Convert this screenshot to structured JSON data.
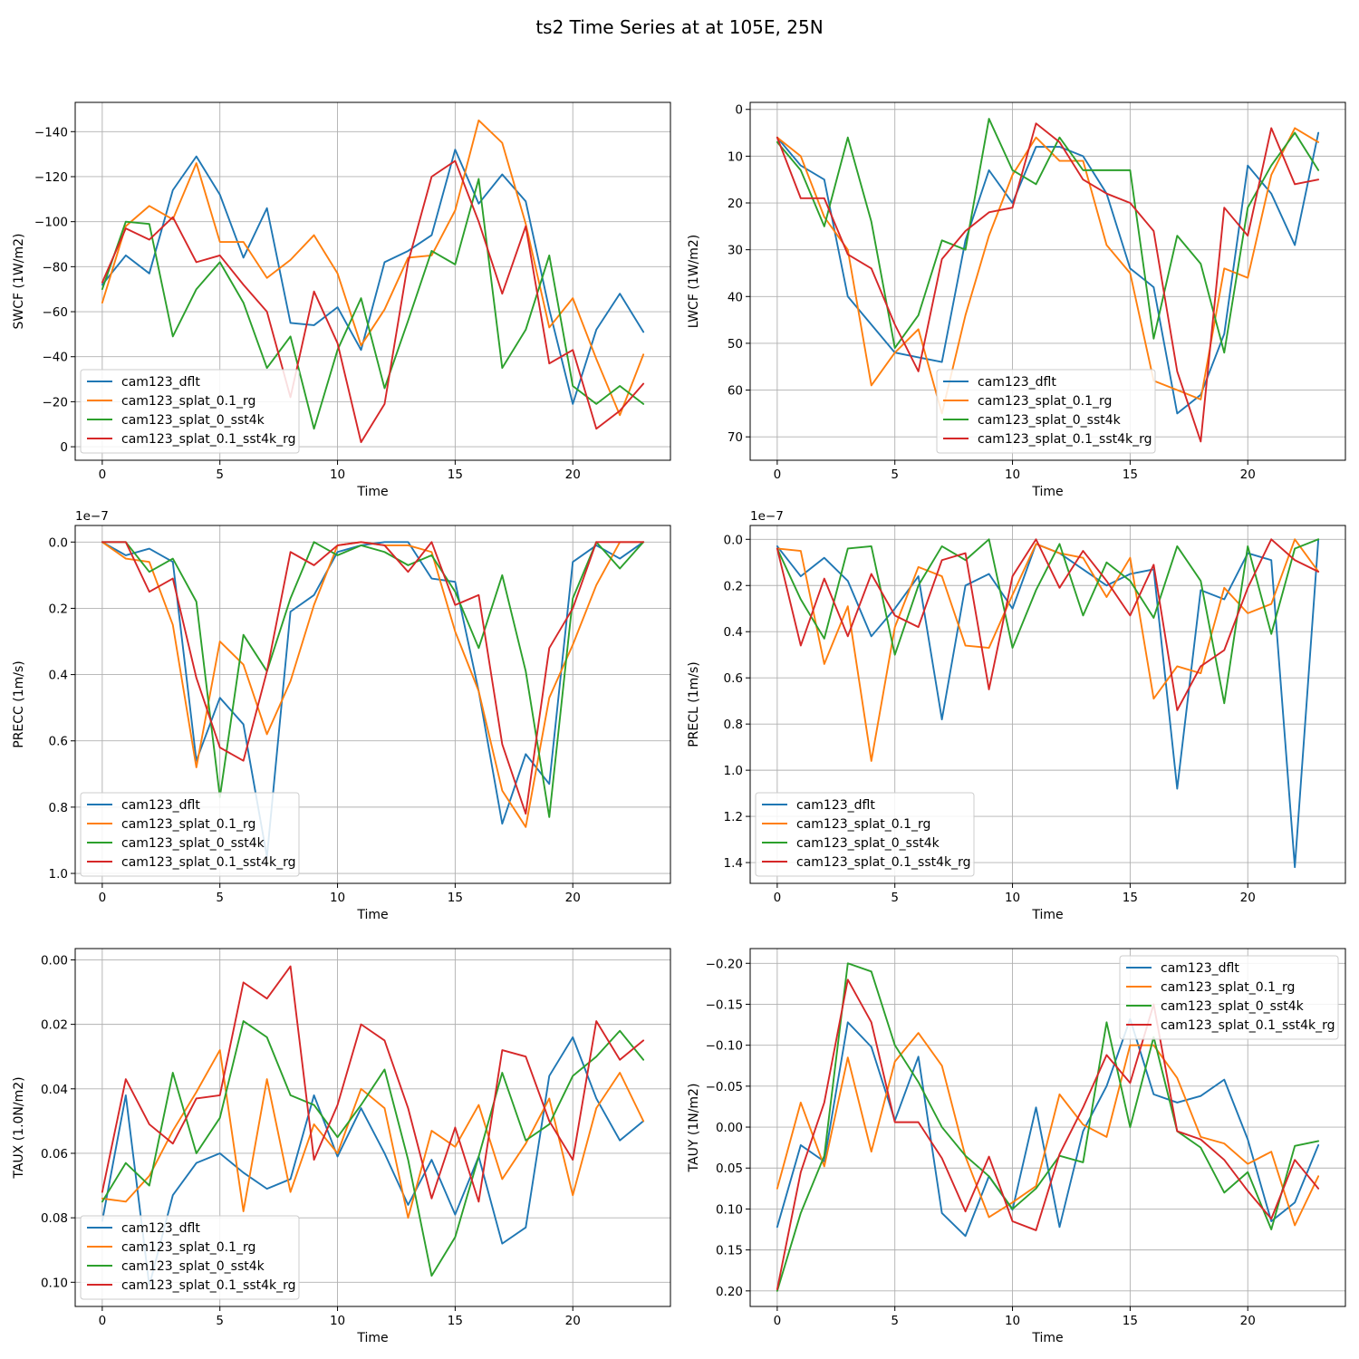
{
  "figure": {
    "title": "ts2 Time Series at at 105E, 25N"
  },
  "chart_data": [
    {
      "type": "line",
      "xlabel": "Time",
      "ylabel": "SWCF (1W/m2)",
      "x": [
        0,
        1,
        2,
        3,
        4,
        5,
        6,
        7,
        8,
        9,
        10,
        11,
        12,
        13,
        14,
        15,
        16,
        17,
        18,
        19,
        20,
        21,
        22,
        23
      ],
      "xlim": [
        -1.15,
        24.15
      ],
      "ylim": [
        -153,
        6
      ],
      "y_inverted": true,
      "xticks": [
        0,
        5,
        10,
        15,
        20
      ],
      "yticks": [
        -140,
        -120,
        -100,
        -80,
        -60,
        -40,
        -20,
        0
      ],
      "ytick_labels": [
        "−140",
        "−120",
        "−100",
        "−80",
        "−60",
        "−40",
        "−20",
        "0"
      ],
      "offset_text": "",
      "grid": true,
      "legend_position": "lower-left",
      "series": [
        {
          "name": "cam123_dflt",
          "color": "#1f77b4",
          "values": [
            -72,
            -85,
            -77,
            -114,
            -129,
            -112,
            -84,
            -106,
            -55,
            -54,
            -62,
            -43,
            -82,
            -87,
            -94,
            -132,
            -108,
            -121,
            -109,
            -61,
            -19,
            -52,
            -68,
            -51
          ]
        },
        {
          "name": "cam123_splat_0.1_rg",
          "color": "#ff7f0e",
          "values": [
            -64,
            -98,
            -107,
            -101,
            -126,
            -91,
            -91,
            -75,
            -83,
            -94,
            -77,
            -45,
            -61,
            -84,
            -85,
            -105,
            -145,
            -135,
            -99,
            -53,
            -66,
            -39,
            -14,
            -41
          ]
        },
        {
          "name": "cam123_splat_0_sst4k",
          "color": "#2ca02c",
          "values": [
            -70,
            -100,
            -99,
            -49,
            -70,
            -82,
            -64,
            -35,
            -49,
            -8,
            -43,
            -66,
            -26,
            -56,
            -87,
            -81,
            -119,
            -35,
            -52,
            -85,
            -27,
            -19,
            -27,
            -19
          ]
        },
        {
          "name": "cam123_splat_0.1_sst4k_rg",
          "color": "#d62728",
          "values": [
            -73,
            -97,
            -92,
            -102,
            -82,
            -85,
            -72,
            -60,
            -22,
            -69,
            -46,
            -2,
            -19,
            -82,
            -120,
            -127,
            -100,
            -68,
            -98,
            -37,
            -43,
            -8,
            -16,
            -28
          ]
        }
      ]
    },
    {
      "type": "line",
      "xlabel": "Time",
      "ylabel": "LWCF (1W/m2)",
      "x": [
        0,
        1,
        2,
        3,
        4,
        5,
        6,
        7,
        8,
        9,
        10,
        11,
        12,
        13,
        14,
        15,
        16,
        17,
        18,
        19,
        20,
        21,
        22,
        23
      ],
      "xlim": [
        -1.15,
        24.15
      ],
      "ylim": [
        -1.5,
        75
      ],
      "y_inverted": true,
      "xticks": [
        0,
        5,
        10,
        15,
        20
      ],
      "yticks": [
        0,
        10,
        20,
        30,
        40,
        50,
        60,
        70
      ],
      "ytick_labels": [
        "0",
        "10",
        "20",
        "30",
        "40",
        "50",
        "60",
        "70"
      ],
      "offset_text": "",
      "grid": true,
      "legend_position": "lower-center",
      "series": [
        {
          "name": "cam123_dflt",
          "color": "#1f77b4",
          "values": [
            6,
            12,
            15,
            40,
            46,
            52,
            53,
            54,
            28,
            13,
            20,
            8,
            8,
            10,
            18,
            34,
            38,
            65,
            61,
            48,
            12,
            18,
            29,
            5
          ]
        },
        {
          "name": "cam123_splat_0.1_rg",
          "color": "#ff7f0e",
          "values": [
            6,
            10,
            23,
            30,
            59,
            52,
            47,
            65,
            44,
            27,
            14,
            6,
            11,
            11,
            29,
            35,
            58,
            60,
            62,
            34,
            36,
            14,
            4,
            7
          ]
        },
        {
          "name": "cam123_splat_0_sst4k",
          "color": "#2ca02c",
          "values": [
            7,
            13,
            25,
            6,
            24,
            51,
            44,
            28,
            30,
            2,
            13,
            16,
            6,
            13,
            13,
            13,
            49,
            27,
            33,
            52,
            21,
            12,
            5,
            13
          ]
        },
        {
          "name": "cam123_splat_0.1_sst4k_rg",
          "color": "#d62728",
          "values": [
            6,
            19,
            19,
            31,
            34,
            46,
            56,
            32,
            26,
            22,
            21,
            3,
            7,
            15,
            18,
            20,
            26,
            56,
            71,
            21,
            27,
            4,
            16,
            15
          ]
        }
      ]
    },
    {
      "type": "line",
      "xlabel": "Time",
      "ylabel": "PRECC (1m/s)",
      "x": [
        0,
        1,
        2,
        3,
        4,
        5,
        6,
        7,
        8,
        9,
        10,
        11,
        12,
        13,
        14,
        15,
        16,
        17,
        18,
        19,
        20,
        21,
        22,
        23
      ],
      "xlim": [
        -1.15,
        24.15
      ],
      "ylim": [
        -0.05,
        1.03
      ],
      "y_inverted": true,
      "xticks": [
        0,
        5,
        10,
        15,
        20
      ],
      "yticks": [
        0.0,
        0.2,
        0.4,
        0.6,
        0.8,
        1.0
      ],
      "ytick_labels": [
        "0.0",
        "0.2",
        "0.4",
        "0.6",
        "0.8",
        "1.0"
      ],
      "offset_text": "1e−7",
      "grid": true,
      "legend_position": "lower-left",
      "series": [
        {
          "name": "cam123_dflt",
          "color": "#1f77b4",
          "values": [
            0.0,
            0.04,
            0.02,
            0.06,
            0.66,
            0.47,
            0.55,
            0.95,
            0.21,
            0.16,
            0.03,
            0.01,
            0.0,
            0.0,
            0.11,
            0.12,
            0.45,
            0.85,
            0.64,
            0.73,
            0.06,
            0.01,
            0.05,
            0.0
          ]
        },
        {
          "name": "cam123_splat_0.1_rg",
          "color": "#ff7f0e",
          "values": [
            0.0,
            0.05,
            0.06,
            0.25,
            0.68,
            0.3,
            0.37,
            0.58,
            0.42,
            0.19,
            0.01,
            0.0,
            0.01,
            0.01,
            0.03,
            0.27,
            0.45,
            0.75,
            0.86,
            0.47,
            0.31,
            0.13,
            0.0,
            0.0
          ]
        },
        {
          "name": "cam123_splat_0_sst4k",
          "color": "#2ca02c",
          "values": [
            0.0,
            0.0,
            0.09,
            0.05,
            0.18,
            0.77,
            0.28,
            0.39,
            0.17,
            0.0,
            0.04,
            0.01,
            0.03,
            0.07,
            0.04,
            0.15,
            0.32,
            0.1,
            0.39,
            0.83,
            0.17,
            0.0,
            0.08,
            0.0
          ]
        },
        {
          "name": "cam123_splat_0.1_sst4k_rg",
          "color": "#d62728",
          "values": [
            0.0,
            0.0,
            0.15,
            0.11,
            0.41,
            0.62,
            0.66,
            0.39,
            0.03,
            0.07,
            0.01,
            0.0,
            0.01,
            0.09,
            0.0,
            0.19,
            0.16,
            0.61,
            0.82,
            0.32,
            0.2,
            0.0,
            0.0,
            0.0
          ]
        }
      ]
    },
    {
      "type": "line",
      "xlabel": "Time",
      "ylabel": "PRECL (1m/s)",
      "x": [
        0,
        1,
        2,
        3,
        4,
        5,
        6,
        7,
        8,
        9,
        10,
        11,
        12,
        13,
        14,
        15,
        16,
        17,
        18,
        19,
        20,
        21,
        22,
        23
      ],
      "xlim": [
        -1.15,
        24.15
      ],
      "ylim": [
        -0.06,
        1.49
      ],
      "y_inverted": true,
      "xticks": [
        0,
        5,
        10,
        15,
        20
      ],
      "yticks": [
        0.0,
        0.2,
        0.4,
        0.6,
        0.8,
        1.0,
        1.2,
        1.4
      ],
      "ytick_labels": [
        "0.0",
        "0.2",
        "0.4",
        "0.6",
        "0.8",
        "1.0",
        "1.2",
        "1.4"
      ],
      "offset_text": "1e−7",
      "grid": true,
      "legend_position": "lower-left",
      "series": [
        {
          "name": "cam123_dflt",
          "color": "#1f77b4",
          "values": [
            0.03,
            0.16,
            0.08,
            0.18,
            0.42,
            0.3,
            0.16,
            0.78,
            0.2,
            0.15,
            0.3,
            0.02,
            0.06,
            0.13,
            0.2,
            0.15,
            0.13,
            1.08,
            0.22,
            0.26,
            0.06,
            0.09,
            1.42,
            0.0
          ]
        },
        {
          "name": "cam123_splat_0.1_rg",
          "color": "#ff7f0e",
          "values": [
            0.04,
            0.05,
            0.54,
            0.29,
            0.96,
            0.38,
            0.12,
            0.16,
            0.46,
            0.47,
            0.24,
            0.02,
            0.06,
            0.08,
            0.25,
            0.08,
            0.69,
            0.55,
            0.58,
            0.21,
            0.32,
            0.28,
            0.0,
            0.14
          ]
        },
        {
          "name": "cam123_splat_0_sst4k",
          "color": "#2ca02c",
          "values": [
            0.04,
            0.26,
            0.43,
            0.04,
            0.03,
            0.5,
            0.2,
            0.03,
            0.09,
            0.0,
            0.47,
            0.22,
            0.02,
            0.33,
            0.1,
            0.18,
            0.34,
            0.03,
            0.18,
            0.71,
            0.03,
            0.41,
            0.04,
            0.0
          ]
        },
        {
          "name": "cam123_splat_0.1_sst4k_rg",
          "color": "#d62728",
          "values": [
            0.04,
            0.46,
            0.17,
            0.42,
            0.15,
            0.33,
            0.38,
            0.09,
            0.06,
            0.65,
            0.16,
            0.0,
            0.21,
            0.05,
            0.18,
            0.33,
            0.11,
            0.74,
            0.55,
            0.48,
            0.21,
            0.0,
            0.09,
            0.14
          ]
        }
      ]
    },
    {
      "type": "line",
      "xlabel": "Time",
      "ylabel": "TAUX (1.0N/m2)",
      "x": [
        0,
        1,
        2,
        3,
        4,
        5,
        6,
        7,
        8,
        9,
        10,
        11,
        12,
        13,
        14,
        15,
        16,
        17,
        18,
        19,
        20,
        21,
        22,
        23
      ],
      "xlim": [
        -1.15,
        24.15
      ],
      "ylim": [
        -0.0035,
        0.1075
      ],
      "y_inverted": true,
      "xticks": [
        0,
        5,
        10,
        15,
        20
      ],
      "yticks": [
        0.0,
        0.02,
        0.04,
        0.06,
        0.08,
        0.1
      ],
      "ytick_labels": [
        "0.00",
        "0.02",
        "0.04",
        "0.06",
        "0.08",
        "0.10"
      ],
      "offset_text": "",
      "grid": true,
      "legend_position": "lower-left",
      "series": [
        {
          "name": "cam123_dflt",
          "color": "#1f77b4",
          "values": [
            0.081,
            0.042,
            0.101,
            0.073,
            0.063,
            0.06,
            0.066,
            0.071,
            0.068,
            0.042,
            0.061,
            0.046,
            0.06,
            0.076,
            0.062,
            0.079,
            0.061,
            0.088,
            0.083,
            0.036,
            0.024,
            0.043,
            0.056,
            0.05
          ]
        },
        {
          "name": "cam123_splat_0.1_rg",
          "color": "#ff7f0e",
          "values": [
            0.074,
            0.075,
            0.067,
            0.053,
            0.041,
            0.028,
            0.078,
            0.037,
            0.072,
            0.051,
            0.06,
            0.04,
            0.046,
            0.08,
            0.053,
            0.058,
            0.045,
            0.068,
            0.057,
            0.043,
            0.073,
            0.046,
            0.035,
            0.05
          ]
        },
        {
          "name": "cam123_splat_0_sst4k",
          "color": "#2ca02c",
          "values": [
            0.075,
            0.063,
            0.07,
            0.035,
            0.06,
            0.049,
            0.019,
            0.024,
            0.042,
            0.045,
            0.055,
            0.045,
            0.034,
            0.062,
            0.098,
            0.086,
            0.061,
            0.035,
            0.056,
            0.051,
            0.036,
            0.03,
            0.022,
            0.031
          ]
        },
        {
          "name": "cam123_splat_0.1_sst4k_rg",
          "color": "#d62728",
          "values": [
            0.072,
            0.037,
            0.051,
            0.057,
            0.043,
            0.042,
            0.007,
            0.012,
            0.002,
            0.062,
            0.045,
            0.02,
            0.025,
            0.046,
            0.074,
            0.052,
            0.075,
            0.028,
            0.03,
            0.05,
            0.062,
            0.019,
            0.031,
            0.025
          ]
        }
      ]
    },
    {
      "type": "line",
      "xlabel": "Time",
      "ylabel": "TAUY (1N/m2)",
      "x": [
        0,
        1,
        2,
        3,
        4,
        5,
        6,
        7,
        8,
        9,
        10,
        11,
        12,
        13,
        14,
        15,
        16,
        17,
        18,
        19,
        20,
        21,
        22,
        23
      ],
      "xlim": [
        -1.15,
        24.15
      ],
      "ylim": [
        -0.218,
        0.219
      ],
      "y_inverted": true,
      "xticks": [
        0,
        5,
        10,
        15,
        20
      ],
      "yticks": [
        -0.2,
        -0.15,
        -0.1,
        -0.05,
        0.0,
        0.05,
        0.1,
        0.15,
        0.2
      ],
      "ytick_labels": [
        "−0.20",
        "−0.15",
        "−0.10",
        "−0.05",
        "0.00",
        "0.05",
        "0.10",
        "0.15",
        "0.20"
      ],
      "offset_text": "",
      "grid": true,
      "legend_position": "upper-right",
      "series": [
        {
          "name": "cam123_dflt",
          "color": "#1f77b4",
          "values": [
            0.122,
            0.022,
            0.042,
            -0.128,
            -0.098,
            -0.008,
            -0.086,
            0.105,
            0.133,
            0.06,
            0.101,
            -0.024,
            0.122,
            0.005,
            -0.05,
            -0.132,
            -0.04,
            -0.03,
            -0.038,
            -0.058,
            0.015,
            0.115,
            0.092,
            0.022
          ]
        },
        {
          "name": "cam123_splat_0.1_rg",
          "color": "#ff7f0e",
          "values": [
            0.075,
            -0.03,
            0.048,
            -0.085,
            0.03,
            -0.08,
            -0.115,
            -0.075,
            0.036,
            0.11,
            0.092,
            0.072,
            -0.04,
            -0.003,
            0.012,
            -0.1,
            -0.1,
            -0.06,
            0.012,
            0.02,
            0.045,
            0.03,
            0.12,
            0.06
          ]
        },
        {
          "name": "cam123_splat_0_sst4k",
          "color": "#2ca02c",
          "values": [
            0.2,
            0.105,
            0.035,
            -0.2,
            -0.19,
            -0.1,
            -0.055,
            0.0,
            0.035,
            0.06,
            0.1,
            0.075,
            0.035,
            0.043,
            -0.128,
            0.0,
            -0.11,
            0.005,
            0.025,
            0.08,
            0.055,
            0.125,
            0.023,
            0.017
          ]
        },
        {
          "name": "cam123_splat_0.1_sst4k_rg",
          "color": "#d62728",
          "values": [
            0.198,
            0.055,
            -0.03,
            -0.18,
            -0.128,
            -0.006,
            -0.006,
            0.038,
            0.103,
            0.036,
            0.115,
            0.126,
            0.033,
            -0.024,
            -0.088,
            -0.054,
            -0.15,
            0.005,
            0.015,
            0.04,
            0.078,
            0.112,
            0.04,
            0.075
          ]
        }
      ]
    }
  ]
}
